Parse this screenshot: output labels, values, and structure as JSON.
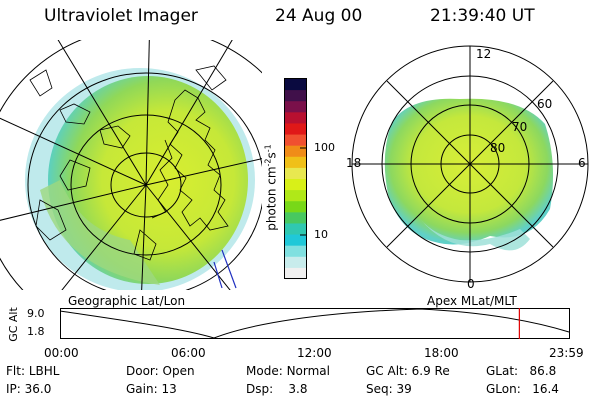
{
  "header": {
    "instrument": "Ultraviolet Imager",
    "date": "24 Aug 00",
    "time": "21:39:40 UT"
  },
  "colorbar": {
    "unit_text": "photon cm",
    "unit_exp1": "-2",
    "unit_s": "s",
    "unit_exp2": "-1",
    "ticks": [
      "100",
      "10"
    ],
    "colors": [
      "#0a0a40",
      "#40104a",
      "#7a104a",
      "#b81030",
      "#e01818",
      "#f05030",
      "#f08c18",
      "#f0c018",
      "#e8e850",
      "#d8f018",
      "#b0e818",
      "#78d818",
      "#48c860",
      "#30c8b0",
      "#20c8d8",
      "#80e0e0",
      "#c8ecec",
      "#f0f0f0"
    ]
  },
  "left_panel": {
    "label": "Geographic Lat/Lon"
  },
  "right_panel": {
    "label": "Apex MLat/MLT",
    "mlt_labels": {
      "top": "12",
      "bottom": "0",
      "left": "18",
      "right": "6"
    },
    "lat_labels": [
      "60",
      "70",
      "80"
    ]
  },
  "timeline": {
    "ylabel": "GC Alt",
    "ytick_top": "9.0",
    "ytick_bottom": "1.8",
    "x_ticks": [
      "00:00",
      "06:00",
      "12:00",
      "18:00",
      "23:59"
    ],
    "current_time_hours": 21.66,
    "marker_color": "#e00000"
  },
  "info": {
    "filter_label": "Flt:",
    "filter_value": "LBHL",
    "ip_label": "IP:",
    "ip_value": "36.0",
    "door_label": "Door:",
    "door_value": "Open",
    "gain_label": "Gain:",
    "gain_value": "13",
    "mode_label": "Mode:",
    "mode_value": "Normal",
    "dsp_label": "Dsp:",
    "dsp_value": "3.8",
    "gcalt_label": "GC Alt:",
    "gcalt_value": "6.9 Re",
    "seq_label": "Seq:",
    "seq_value": "39",
    "glat_label": "GLat:",
    "glat_value": "86.8",
    "glon_label": "GLon:",
    "glon_value": "16.4"
  }
}
